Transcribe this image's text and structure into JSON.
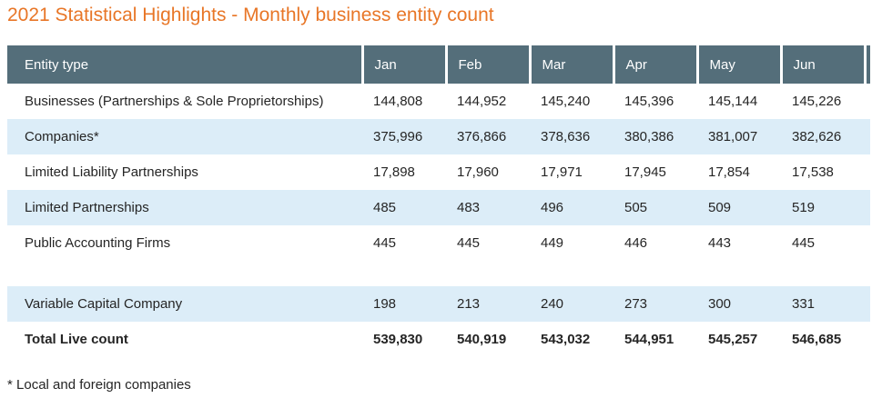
{
  "title": "2021 Statistical Highlights - Monthly business entity count",
  "footnote": "* Local and foreign companies",
  "colors": {
    "title_color": "#e87627",
    "header_bg": "#546e7a",
    "header_text": "#ffffff",
    "row_alt_bg": "#dcedf8",
    "body_text": "#252525"
  },
  "table": {
    "entity_column_header": "Entity type",
    "month_headers": [
      "Jan",
      "Feb",
      "Mar",
      "Apr",
      "May",
      "Jun"
    ],
    "rows": [
      {
        "label": "Businesses (Partnerships & Sole Proprietorships)",
        "values": [
          "144,808",
          "144,952",
          "145,240",
          "145,396",
          "145,144",
          "145,226"
        ]
      },
      {
        "label": "Companies*",
        "values": [
          "375,996",
          "376,866",
          "378,636",
          "380,386",
          "381,007",
          "382,626"
        ]
      },
      {
        "label": "Limited Liability Partnerships",
        "values": [
          "17,898",
          "17,960",
          "17,971",
          "17,945",
          "17,854",
          "17,538"
        ]
      },
      {
        "label": "Limited Partnerships",
        "values": [
          "485",
          "483",
          "496",
          "505",
          "509",
          "519"
        ]
      },
      {
        "label": "Public Accounting Firms",
        "values": [
          "445",
          "445",
          "449",
          "446",
          "443",
          "445"
        ]
      },
      {
        "label": "",
        "values": [
          "",
          "",
          "",
          "",
          "",
          ""
        ]
      },
      {
        "label": "Variable Capital Company",
        "values": [
          "198",
          "213",
          "240",
          "273",
          "300",
          "331"
        ]
      },
      {
        "label": "Total Live count",
        "values": [
          "539,830",
          "540,919",
          "543,032",
          "544,951",
          "545,257",
          "546,685"
        ]
      }
    ]
  },
  "chart_data": {
    "type": "table",
    "title": "2021 Statistical Highlights - Monthly business entity count",
    "categories": [
      "Jan",
      "Feb",
      "Mar",
      "Apr",
      "May",
      "Jun"
    ],
    "series": [
      {
        "name": "Businesses (Partnerships & Sole Proprietorships)",
        "values": [
          144808,
          144952,
          145240,
          145396,
          145144,
          145226
        ]
      },
      {
        "name": "Companies*",
        "values": [
          375996,
          376866,
          378636,
          380386,
          381007,
          382626
        ]
      },
      {
        "name": "Limited Liability Partnerships",
        "values": [
          17898,
          17960,
          17971,
          17945,
          17854,
          17538
        ]
      },
      {
        "name": "Limited Partnerships",
        "values": [
          485,
          483,
          496,
          505,
          509,
          519
        ]
      },
      {
        "name": "Public Accounting Firms",
        "values": [
          445,
          445,
          449,
          446,
          443,
          445
        ]
      },
      {
        "name": "Variable Capital Company",
        "values": [
          198,
          213,
          240,
          273,
          300,
          331
        ]
      },
      {
        "name": "Total Live count",
        "values": [
          539830,
          540919,
          543032,
          544951,
          545257,
          546685
        ]
      }
    ],
    "footnote": "* Local and foreign companies"
  }
}
